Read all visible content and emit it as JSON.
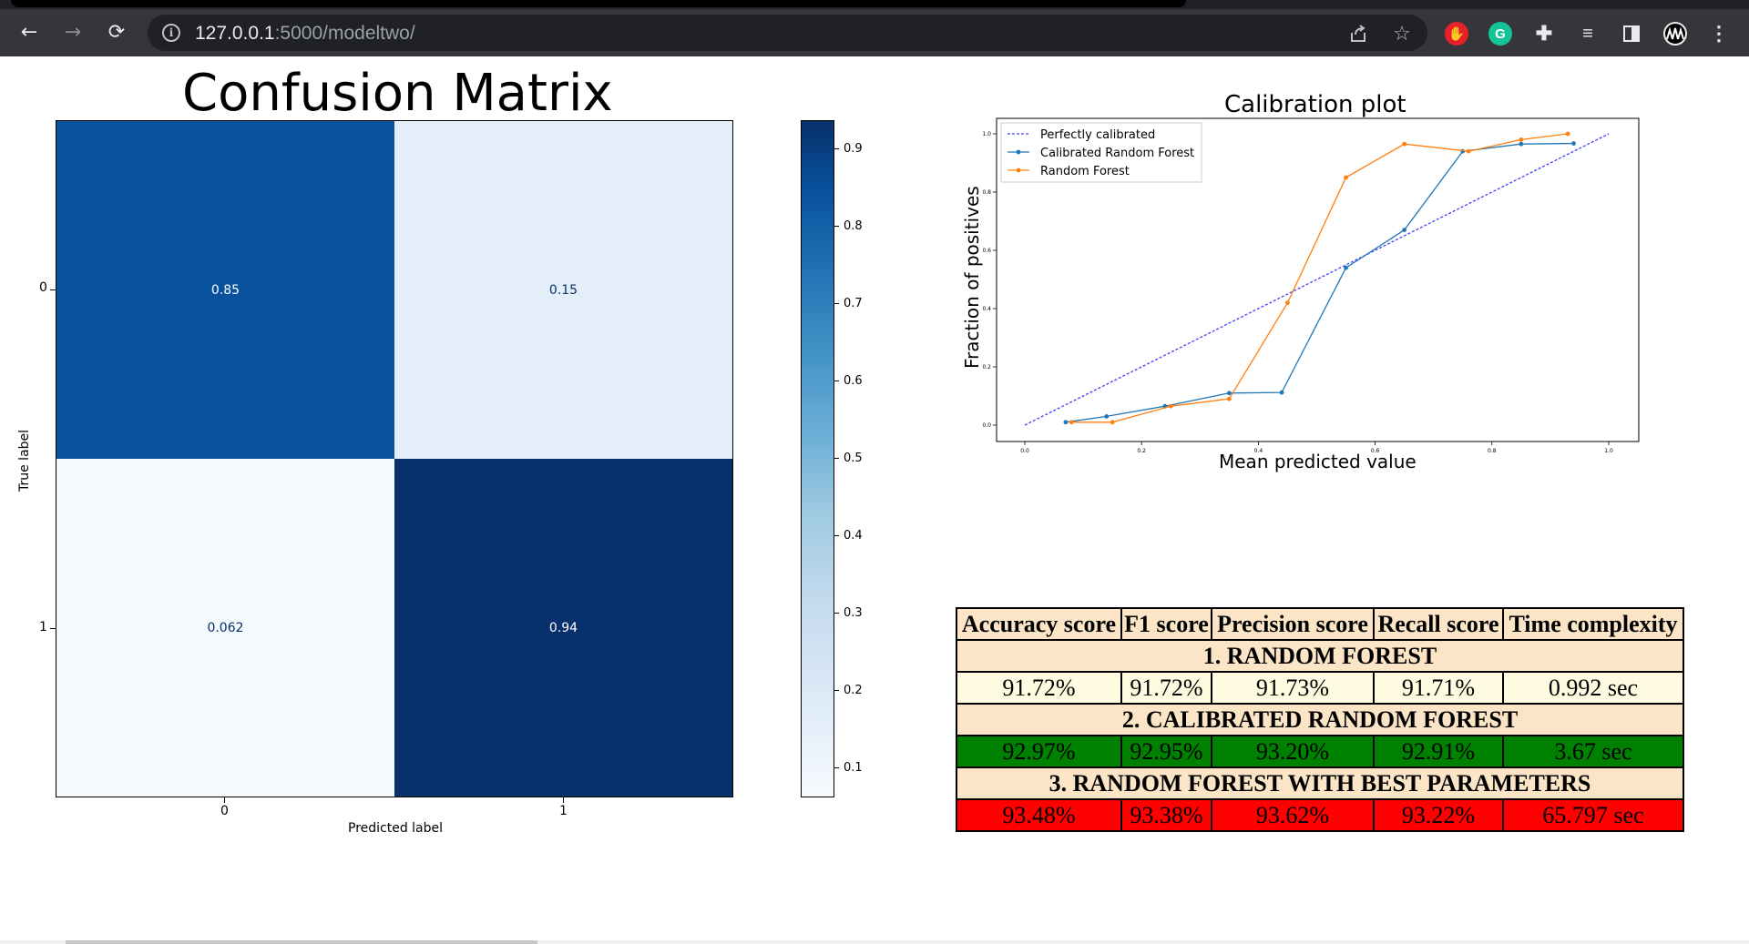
{
  "browser": {
    "url_host": "127.0.0.1",
    "url_rest": ":5000/modeltwo/",
    "back_icon": "←",
    "forward_icon": "→",
    "reload_icon": "⟳"
  },
  "confusion_matrix": {
    "title": "Confusion Matrix",
    "ylabel": "True label",
    "xlabel": "Predicted label",
    "x_ticks": [
      "0",
      "1"
    ],
    "y_ticks": [
      "0",
      "1"
    ],
    "cells": [
      {
        "value": "0.85",
        "row": 0,
        "col": 0,
        "bg": "#08519c",
        "fg": "#ffffff"
      },
      {
        "value": "0.15",
        "row": 0,
        "col": 1,
        "bg": "#e3eef9",
        "fg": "#08306b"
      },
      {
        "value": "0.062",
        "row": 1,
        "col": 0,
        "bg": "#f4f9fe",
        "fg": "#08306b"
      },
      {
        "value": "0.94",
        "row": 1,
        "col": 1,
        "bg": "#08306b",
        "fg": "#ffffff"
      }
    ],
    "colorbar_ticks": [
      "0.9",
      "0.8",
      "0.7",
      "0.6",
      "0.5",
      "0.4",
      "0.3",
      "0.2",
      "0.1"
    ]
  },
  "chart_data": {
    "type": "line",
    "title": "Calibration plot",
    "xlabel": "Mean predicted value",
    "ylabel": "Fraction of positives",
    "xlim": [
      0,
      1
    ],
    "ylim": [
      0,
      1
    ],
    "x_ticks": [
      "0.0",
      "0.2",
      "0.4",
      "0.6",
      "0.8",
      "1.0"
    ],
    "y_ticks": [
      "0.0",
      "0.2",
      "0.4",
      "0.6",
      "0.8",
      "1.0"
    ],
    "legend_position": "top-left",
    "series": [
      {
        "name": "Perfectly calibrated",
        "color": "#4040ff",
        "dashed": true,
        "markers": false,
        "x": [
          0.0,
          1.0
        ],
        "y": [
          0.0,
          1.0
        ]
      },
      {
        "name": "Calibrated Random Forest",
        "color": "#1f77b4",
        "dashed": false,
        "markers": true,
        "x": [
          0.07,
          0.14,
          0.24,
          0.35,
          0.44,
          0.55,
          0.65,
          0.75,
          0.85,
          0.94
        ],
        "y": [
          0.01,
          0.03,
          0.065,
          0.11,
          0.112,
          0.54,
          0.67,
          0.94,
          0.965,
          0.967
        ]
      },
      {
        "name": "Random Forest",
        "color": "#ff7f0e",
        "dashed": false,
        "markers": true,
        "x": [
          0.08,
          0.15,
          0.25,
          0.35,
          0.45,
          0.55,
          0.65,
          0.76,
          0.85,
          0.93
        ],
        "y": [
          0.01,
          0.01,
          0.065,
          0.09,
          0.42,
          0.85,
          0.965,
          0.94,
          0.98,
          1.0
        ]
      }
    ]
  },
  "metrics_table": {
    "headers": [
      "Accuracy score",
      "F1 score",
      "Precision score",
      "Recall score",
      "Time complexity"
    ],
    "sections": [
      {
        "title": "1. RANDOM FOREST",
        "values": [
          "91.72%",
          "91.72%",
          "91.73%",
          "91.71%",
          "0.992 sec"
        ],
        "color": "#fffbe0"
      },
      {
        "title": "2. CALIBRATED RANDOM FOREST",
        "values": [
          "92.97%",
          "92.95%",
          "93.20%",
          "92.91%",
          "3.67 sec"
        ],
        "color": "#008000"
      },
      {
        "title": "3. RANDOM FOREST WITH BEST PARAMETERS",
        "values": [
          "93.48%",
          "93.38%",
          "93.62%",
          "93.22%",
          "65.797 sec"
        ],
        "color": "#ff0000"
      }
    ]
  }
}
